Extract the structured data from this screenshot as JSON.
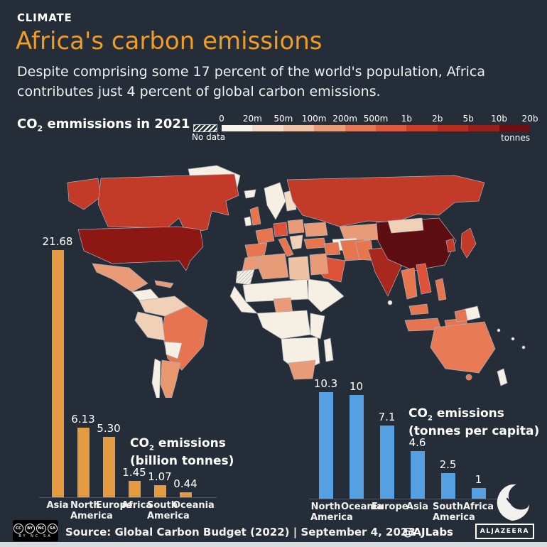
{
  "header": {
    "kicker": "CLIMATE",
    "title": "Africa's carbon emissions",
    "subtitle": "Despite comprising some 17 percent of the world's population, Africa contributes just 4 percent of global carbon emissions.",
    "accent_color": "#f09d26"
  },
  "legend": {
    "title_prefix": "CO",
    "title_sub": "2",
    "title_rest": " emmissions in 2021",
    "no_data_label": "No data",
    "unit_label": "tonnes",
    "ticks": [
      "0",
      "20m",
      "50m",
      "100m",
      "200m",
      "500m",
      "1b",
      "2b",
      "5b",
      "10b",
      "20b"
    ],
    "colors": [
      "#f8f3ea",
      "#f4dcc6",
      "#efc3a4",
      "#e99d79",
      "#e4795a",
      "#dd5a40",
      "#c93f2b",
      "#b42e22",
      "#981f1a",
      "#6e1013"
    ]
  },
  "map": {
    "regions": {
      "greenland": "#f6f0e4",
      "alaska": "#c43a28",
      "canada": "#c43a28",
      "usa": "#8c1713",
      "mexico": "#e99a76",
      "central-america": "#f6f0e4",
      "cuba": "#e99a76",
      "venezuela-colombia": "#f0d0b6",
      "brazil": "#e77450",
      "peru": "#f0d0b6",
      "bolivia-paraguay": "#f6f0e4",
      "argentina": "#e9976f",
      "chile": "#f6f0e4",
      "iceland": "#f6f0e4",
      "scandinavia": "#f6f0e4",
      "finland": "#f2ddc6",
      "uk": "#e7764f",
      "ireland": "#f6f0e4",
      "france": "#e7764f",
      "spain": "#e7764f",
      "germany": "#dd5238",
      "italy": "#e7764f",
      "poland-ce": "#e99a76",
      "ukraine": "#e99a76",
      "balkans": "#f0d0b6",
      "russia": "#c43a28",
      "kazakhstan": "#e99a76",
      "central-asia": "#f6f0e4",
      "turkey": "#e7764f",
      "iraq-syria": "#e7764f",
      "iran": "#e7764f",
      "saudi": "#dd5238",
      "morocco": "#e99a76",
      "algeria": "#e99a76",
      "libya": "#eec3a3",
      "egypt": "#e99a76",
      "mali-niger-chad": "#f6f0e4",
      "west-africa": "#f6f0e4",
      "nigeria": "#e99a76",
      "sudan-horn": "#f6f0e4",
      "central-africa": "#f6f0e4",
      "east-africa": "#f6f0e4",
      "southern-africa": "#f6f0e4",
      "south-africa": "#e99a76",
      "madagascar": "#f6f0e4",
      "pakistan": "#e7764f",
      "india": "#a8281d",
      "china": "#5e0d11",
      "mongolia": "#f0d0b6",
      "myanmar-thailand": "#e7764f",
      "vietnam": "#dd5238",
      "malaysia": "#e7764f",
      "indonesia-w": "#e77450",
      "indonesia-e": "#e77450",
      "philippines": "#e7764f",
      "korea": "#c43a28",
      "japan": "#c43a28",
      "west-papua": "#e77450",
      "png": "#f6f0e4",
      "australia": "#e87a55",
      "tasmania": "#e87a55",
      "nz": "#f6f0e4",
      "sri-lanka": "#f6f0e4",
      "pacific-1": "#f6f0e4",
      "pacific-2": "#f6f0e4",
      "pacific-3": "#f6f0e4"
    },
    "no_data_region": "wsahara"
  },
  "chart_data": [
    {
      "type": "bar",
      "title": "CO2 emissions (billion tonnes)",
      "categories": [
        "Asia",
        "North America",
        "Europe",
        "Africa",
        "South America",
        "Oceania"
      ],
      "values": [
        21.68,
        6.13,
        5.3,
        1.45,
        1.07,
        0.44
      ],
      "value_labels": [
        "21.68",
        "6.13",
        "5.30",
        "1.45",
        "1.07",
        "0.44"
      ],
      "bar_color": "#e49b42",
      "ylim": [
        0,
        22
      ],
      "legend_position": "none",
      "annotation": {
        "prefix": "CO",
        "sub": "2",
        "rest": " emissions",
        "line2": "(billion tonnes)"
      }
    },
    {
      "type": "bar",
      "title": "CO2 emissions (tonnes per capita)",
      "categories": [
        "North America",
        "Oceania",
        "Europe",
        "Asia",
        "South America",
        "Africa"
      ],
      "values": [
        10.3,
        10,
        7.1,
        4.6,
        2.5,
        1
      ],
      "value_labels": [
        "10.3",
        "10",
        "7.1",
        "4.6",
        "2.5",
        "1"
      ],
      "bar_color": "#54a0e2",
      "ylim": [
        0,
        11
      ],
      "legend_position": "none",
      "annotation": {
        "prefix": "CO",
        "sub": "2",
        "rest": " emissions",
        "line2": "(tonnes per capita)"
      }
    }
  ],
  "footer": {
    "cc_icons": [
      "CC",
      "BY",
      "NC",
      "SA"
    ],
    "cc_sub": "BY NC SA",
    "source": "Source: Global Carbon Budget (2022)  |  September 4, 2023",
    "handle": "@AJLabs",
    "brand": "ALJAZEERA"
  }
}
